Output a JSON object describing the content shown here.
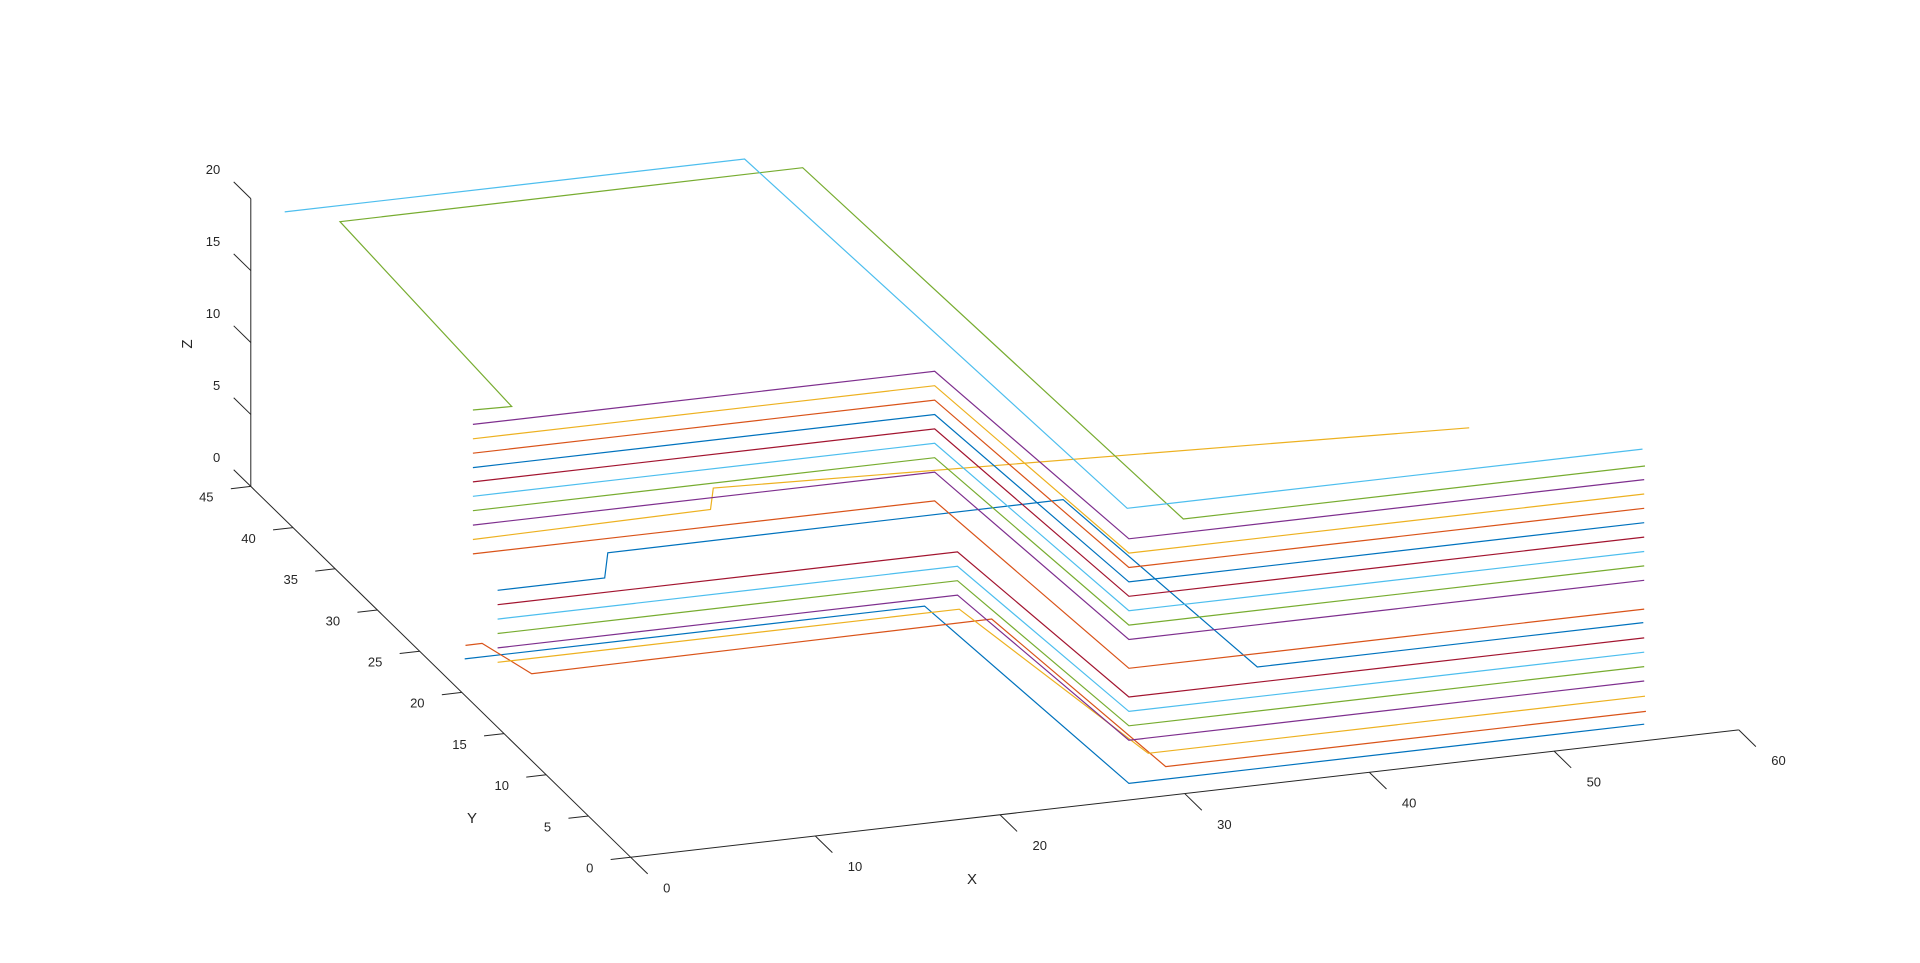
{
  "chart_data": {
    "type": "line3d",
    "xlabel": "X",
    "ylabel": "Y",
    "zlabel": "Z",
    "xlim": [
      0,
      60
    ],
    "ylim": [
      0,
      45
    ],
    "zlim": [
      0,
      20
    ],
    "xticks": [
      0,
      10,
      20,
      30,
      40,
      50,
      60
    ],
    "yticks": [
      0,
      5,
      10,
      15,
      20,
      25,
      30,
      35,
      40,
      45
    ],
    "zticks": [
      0,
      5,
      10,
      15,
      20
    ],
    "series": [
      {
        "color": "#0072BD",
        "x": [
          1.8,
          26.7,
          27.8,
          55.7
        ],
        "y": [
          23.6,
          23.6,
          1.8,
          1.8
        ],
        "z": [
          0,
          0,
          0,
          0
        ]
      },
      {
        "color": "#D95319",
        "x": [
          1.8,
          2.7,
          3.6,
          28.6,
          29.7,
          55.7
        ],
        "y": [
          23.5,
          23.5,
          19.6,
          19.8,
          1.6,
          1.6
        ],
        "z": [
          1,
          1,
          1,
          1,
          1,
          1
        ]
      },
      {
        "color": "#EDB120",
        "x": [
          1.8,
          26.8,
          28.8,
          55.7
        ],
        "y": [
          19.7,
          19.7,
          1.7,
          1.7
        ],
        "z": [
          2,
          2,
          2,
          2
        ]
      },
      {
        "color": "#7E2F8E",
        "x": [
          1.8,
          26.7,
          27.8,
          55.7
        ],
        "y": [
          19.7,
          19.7,
          1.8,
          1.8
        ],
        "z": [
          3,
          3,
          3,
          3
        ]
      },
      {
        "color": "#77AC30",
        "x": [
          1.8,
          26.7,
          27.8,
          55.7
        ],
        "y": [
          19.7,
          19.7,
          1.8,
          1.8
        ],
        "z": [
          4,
          4,
          4,
          4
        ]
      },
      {
        "color": "#4DBEEE",
        "x": [
          1.8,
          26.7,
          27.8,
          55.7
        ],
        "y": [
          19.7,
          19.7,
          1.8,
          1.8
        ],
        "z": [
          5,
          5,
          5,
          5
        ]
      },
      {
        "color": "#A2142F",
        "x": [
          1.8,
          26.7,
          27.8,
          55.7
        ],
        "y": [
          19.7,
          19.7,
          1.8,
          1.8
        ],
        "z": [
          6,
          6,
          6,
          6
        ]
      },
      {
        "color": "#0072BD",
        "x": [
          1.8,
          7.6,
          9,
          33.7,
          34.8,
          55.7
        ],
        "y": [
          19.7,
          19.7,
          22.4,
          22.5,
          1.9,
          1.9
        ],
        "z": [
          7,
          7,
          7,
          7,
          7,
          7
        ]
      },
      {
        "color": "#D95319",
        "x": [
          1.7,
          26.7,
          27.8,
          55.7
        ],
        "y": [
          22.4,
          22.4,
          1.8,
          1.8
        ],
        "z": [
          8,
          8,
          8,
          8
        ]
      },
      {
        "color": "#EDB120",
        "x": [
          1.7,
          14.7,
          15.9,
          55.5
        ],
        "y": [
          22.4,
          22.7,
          25,
          22.1
        ],
        "z": [
          9,
          9,
          9,
          9
        ]
      },
      {
        "color": "#7E2F8E",
        "x": [
          1.7,
          26.7,
          27.8,
          55.7
        ],
        "y": [
          22.4,
          22.4,
          1.8,
          1.8
        ],
        "z": [
          10,
          10,
          10,
          10
        ]
      },
      {
        "color": "#77AC30",
        "x": [
          1.7,
          26.7,
          27.8,
          55.7
        ],
        "y": [
          22.4,
          22.4,
          1.8,
          1.8
        ],
        "z": [
          11,
          11,
          11,
          11
        ]
      },
      {
        "color": "#4DBEEE",
        "x": [
          1.7,
          26.7,
          27.8,
          55.7
        ],
        "y": [
          22.4,
          22.4,
          1.8,
          1.8
        ],
        "z": [
          12,
          12,
          12,
          12
        ]
      },
      {
        "color": "#A2142F",
        "x": [
          1.7,
          26.7,
          27.8,
          55.7
        ],
        "y": [
          22.4,
          22.4,
          1.8,
          1.8
        ],
        "z": [
          13,
          13,
          13,
          13
        ]
      },
      {
        "color": "#0072BD",
        "x": [
          1.7,
          26.7,
          27.8,
          55.7
        ],
        "y": [
          22.4,
          22.4,
          1.8,
          1.8
        ],
        "z": [
          14,
          14,
          14,
          14
        ]
      },
      {
        "color": "#D95319",
        "x": [
          1.7,
          26.7,
          27.8,
          55.7
        ],
        "y": [
          22.4,
          22.4,
          1.8,
          1.8
        ],
        "z": [
          15,
          15,
          15,
          15
        ]
      },
      {
        "color": "#EDB120",
        "x": [
          1.7,
          26.7,
          27.8,
          55.7
        ],
        "y": [
          22.4,
          22.4,
          1.8,
          1.8
        ],
        "z": [
          16,
          16,
          16,
          16
        ]
      },
      {
        "color": "#7E2F8E",
        "x": [
          1.7,
          26.7,
          27.8,
          55.7
        ],
        "y": [
          22.4,
          22.4,
          1.8,
          1.8
        ],
        "z": [
          17,
          17,
          17,
          17
        ]
      },
      {
        "color": "#77AC30",
        "x": [
          1.7,
          3.75,
          4.6,
          29.7,
          30.7,
          55.7
        ],
        "y": [
          22.4,
          22.3,
          44.5,
          44.6,
          1.7,
          1.7
        ],
        "z": [
          18,
          18,
          18,
          18,
          18,
          18
        ]
      },
      {
        "color": "#4DBEEE",
        "x": [
          1.7,
          26.6,
          27.8,
          55.7
        ],
        "y": [
          44.7,
          44.7,
          2,
          2
        ],
        "z": [
          19,
          19,
          19,
          19
        ]
      }
    ]
  }
}
